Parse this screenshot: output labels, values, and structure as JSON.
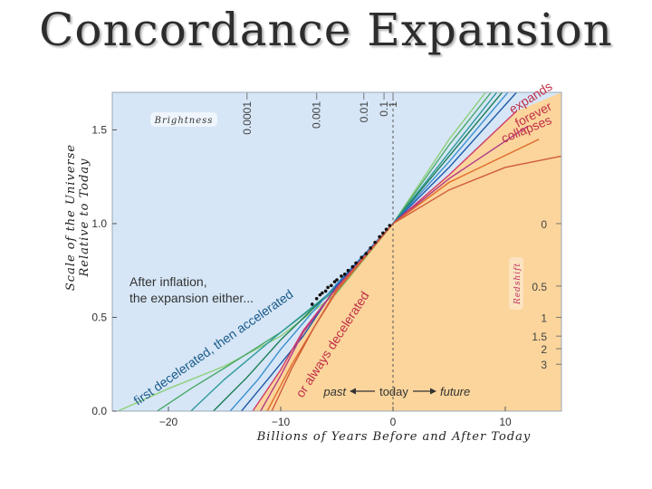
{
  "slide": {
    "title": "Concordance Expansion"
  },
  "chart_data": {
    "type": "line",
    "ylabel": [
      "Scale of the Universe",
      "Relative to Today"
    ],
    "xlabel": "Billions of Years Before and After Today",
    "xlim": [
      -25,
      15
    ],
    "ylim": [
      0,
      1.7
    ],
    "x_ticks": [
      -20,
      -10,
      0,
      10
    ],
    "x_tick_labels": [
      "−20",
      "−10",
      "0",
      "10"
    ],
    "y_ticks": [
      0.0,
      0.5,
      1.0,
      1.5
    ],
    "y_tick_labels": [
      "0.0",
      "0.5",
      "1.0",
      "1.5"
    ],
    "brightness": {
      "label": "Brightness",
      "ticks": [
        {
          "label": "0.0001",
          "x": -13
        },
        {
          "label": "0.001",
          "x": -6.8
        },
        {
          "label": "0.01",
          "x": -2.6
        },
        {
          "label": "0.1",
          "x": -0.8
        },
        {
          "label": "1",
          "x": 0
        }
      ]
    },
    "redshift": {
      "label": "Redshift",
      "ticks": [
        {
          "label": "0",
          "y": 1.0
        },
        {
          "label": "0.5",
          "y": 0.667
        },
        {
          "label": "1",
          "y": 0.5
        },
        {
          "label": "1.5",
          "y": 0.4
        },
        {
          "label": "2",
          "y": 0.333
        },
        {
          "label": "3",
          "y": 0.25
        }
      ]
    },
    "annotations": {
      "inflation": [
        "After inflation,",
        "the expansion either..."
      ],
      "accelerated": "first decelerated, then accelerated",
      "decelerated": "or always decelerated",
      "past": "past",
      "today": "today",
      "future": "future",
      "expands": [
        "expands",
        "forever"
      ],
      "collapses": "collapses"
    },
    "series": [
      {
        "group": "accelerated",
        "color": "#8ed07a",
        "x": [
          -24.5,
          -20,
          -15,
          -10,
          -5,
          0,
          5,
          8.5
        ],
        "y": [
          0,
          0.12,
          0.24,
          0.4,
          0.63,
          1.0,
          1.45,
          1.72
        ]
      },
      {
        "group": "accelerated",
        "color": "#4aa86a",
        "x": [
          -21,
          -18,
          -15,
          -10,
          -5,
          0,
          5,
          9.0
        ],
        "y": [
          0,
          0.12,
          0.23,
          0.42,
          0.65,
          1.0,
          1.42,
          1.72
        ]
      },
      {
        "group": "accelerated",
        "color": "#2e9a9a",
        "x": [
          -18,
          -15,
          -10,
          -5,
          0,
          5,
          9.5
        ],
        "y": [
          0,
          0.17,
          0.42,
          0.66,
          1.0,
          1.38,
          1.72
        ]
      },
      {
        "group": "accelerated",
        "color": "#1a7c55",
        "x": [
          -16,
          -13,
          -10,
          -5,
          0,
          5,
          10
        ],
        "y": [
          0,
          0.18,
          0.38,
          0.67,
          1.0,
          1.36,
          1.72
        ]
      },
      {
        "group": "accelerated",
        "color": "#3a8fd0",
        "x": [
          -14.5,
          -12,
          -10,
          -5,
          0,
          5,
          10.5
        ],
        "y": [
          0,
          0.17,
          0.33,
          0.68,
          1.0,
          1.33,
          1.72
        ]
      },
      {
        "group": "accelerated",
        "color": "#1e5aa8",
        "x": [
          -13.5,
          -11,
          -8,
          -5,
          0,
          5,
          11
        ],
        "y": [
          0,
          0.18,
          0.4,
          0.67,
          1.0,
          1.3,
          1.7
        ]
      },
      {
        "group": "decelerated",
        "color": "#d03a6a",
        "x": [
          -12.5,
          -10,
          -8,
          -5,
          0,
          5,
          11
        ],
        "y": [
          0,
          0.22,
          0.43,
          0.66,
          1.0,
          1.26,
          1.6
        ]
      },
      {
        "group": "decelerated",
        "color": "#b03a8a",
        "x": [
          -11.8,
          -10,
          -8,
          -5,
          0,
          5,
          12
        ],
        "y": [
          0,
          0.19,
          0.42,
          0.66,
          1.0,
          1.24,
          1.52
        ]
      },
      {
        "group": "decelerated",
        "color": "#e06a2a",
        "x": [
          -11.2,
          -9,
          -7,
          -5,
          0,
          5,
          13
        ],
        "y": [
          0,
          0.25,
          0.45,
          0.65,
          1.0,
          1.22,
          1.45
        ]
      },
      {
        "group": "decelerated",
        "color": "#d05a3a",
        "x": [
          -10.8,
          -9,
          -7,
          -5,
          0,
          5,
          10,
          15
        ],
        "y": [
          0,
          0.23,
          0.45,
          0.64,
          1.0,
          1.18,
          1.3,
          1.36
        ]
      }
    ],
    "observations": {
      "x": [
        -7.2,
        -6.8,
        -6.5,
        -6.3,
        -6.0,
        -5.8,
        -5.5,
        -5.2,
        -5.0,
        -4.6,
        -4.3,
        -4.0,
        -3.6,
        -3.3,
        -2.8,
        -2.4,
        -2.0,
        -1.6,
        -1.2,
        -0.9,
        -0.6,
        -0.3
      ],
      "y": [
        0.57,
        0.6,
        0.62,
        0.63,
        0.64,
        0.66,
        0.67,
        0.69,
        0.7,
        0.72,
        0.73,
        0.75,
        0.77,
        0.79,
        0.82,
        0.84,
        0.87,
        0.9,
        0.93,
        0.95,
        0.97,
        0.99
      ]
    }
  }
}
